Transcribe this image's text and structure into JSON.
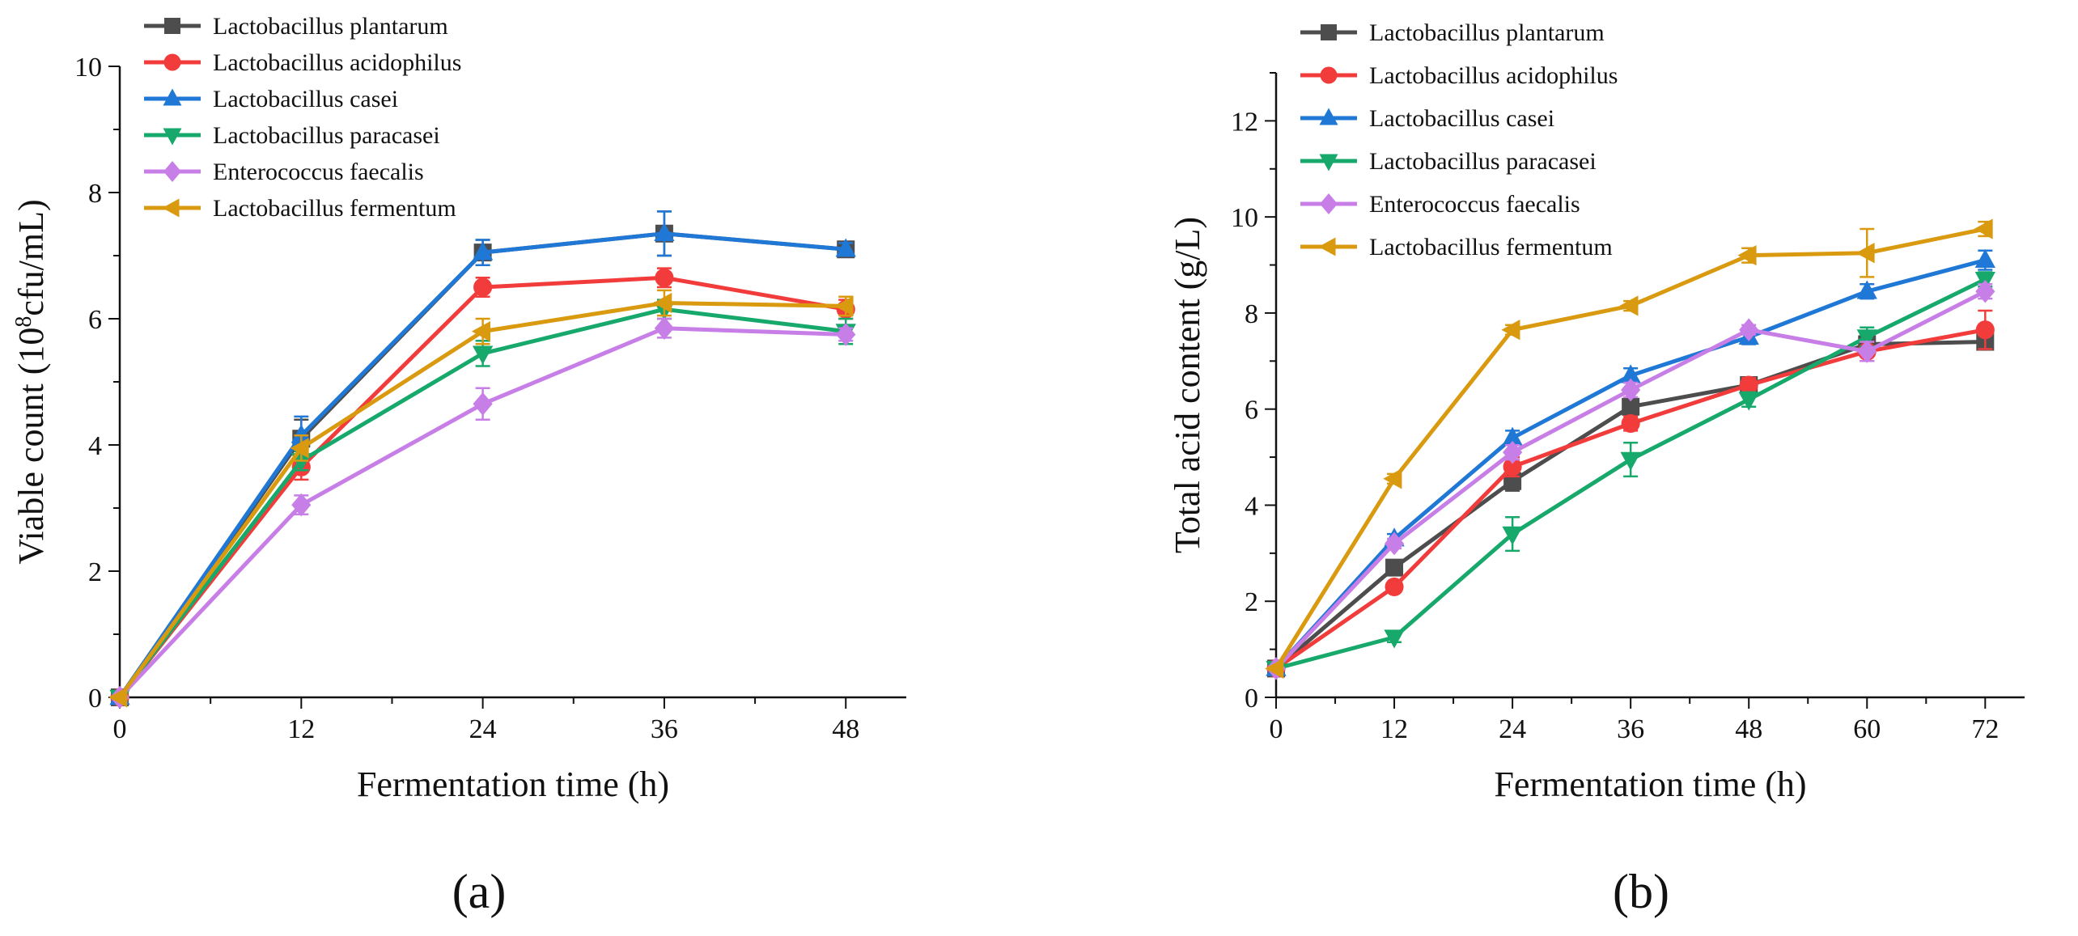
{
  "colors": {
    "plantarum": "#4d4d4d",
    "acidophilus": "#f23c3c",
    "casei": "#1f77d6",
    "paracasei": "#17a86b",
    "faecalis": "#c77ee6",
    "fermentum": "#d99a10",
    "axis": "#111111"
  },
  "chart_data": [
    {
      "type": "line",
      "panel_label": "(a)",
      "xlabel": "Fermentation time (h)",
      "ylabel_prefix": "Viable count (10",
      "ylabel_sup": "8",
      "ylabel_suffix": "cfu/mL)",
      "xlim": [
        0,
        52
      ],
      "ylim": [
        0,
        10
      ],
      "xticks": [
        0,
        12,
        24,
        36,
        48
      ],
      "yticks": [
        0,
        2,
        4,
        6,
        8,
        10
      ],
      "legend_position": "top-left",
      "x": [
        0,
        12,
        24,
        36,
        48
      ],
      "series": [
        {
          "key": "plantarum",
          "name": "Lactobacillus plantarum",
          "marker": "square",
          "color": "#4d4d4d",
          "values": [
            0,
            4.1,
            7.05,
            7.35,
            7.1
          ],
          "errors": [
            0,
            0.3,
            0.2,
            0.35,
            0.1
          ]
        },
        {
          "key": "acidophilus",
          "name": "Lactobacillus acidophilus",
          "marker": "circle",
          "color": "#f23c3c",
          "values": [
            0,
            3.65,
            6.5,
            6.65,
            6.15
          ],
          "errors": [
            0,
            0.2,
            0.15,
            0.15,
            0.15
          ]
        },
        {
          "key": "casei",
          "name": "Lactobacillus casei",
          "marker": "triangle-up",
          "color": "#1f77d6",
          "values": [
            0,
            4.15,
            7.05,
            7.35,
            7.1
          ],
          "errors": [
            0,
            0.3,
            0.2,
            0.35,
            0.1
          ]
        },
        {
          "key": "paracasei",
          "name": "Lactobacillus paracasei",
          "marker": "triangle-down",
          "color": "#17a86b",
          "values": [
            0,
            3.75,
            5.45,
            6.15,
            5.8
          ],
          "errors": [
            0,
            0.15,
            0.2,
            0.15,
            0.2
          ]
        },
        {
          "key": "faecalis",
          "name": "Enterococcus faecalis",
          "marker": "diamond",
          "color": "#c77ee6",
          "values": [
            0,
            3.05,
            4.65,
            5.85,
            5.75
          ],
          "errors": [
            0,
            0.15,
            0.25,
            0.15,
            0.1
          ]
        },
        {
          "key": "fermentum",
          "name": "Lactobacillus fermentum",
          "marker": "triangle-left",
          "color": "#d99a10",
          "values": [
            0,
            3.95,
            5.8,
            6.25,
            6.2
          ],
          "errors": [
            0,
            0.2,
            0.2,
            0.2,
            0.15
          ]
        }
      ]
    },
    {
      "type": "line",
      "panel_label": "(b)",
      "xlabel": "Fermentation time (h)",
      "ylabel": "Total acid content (g/L)",
      "xlim": [
        0,
        76
      ],
      "ylim": [
        0,
        13
      ],
      "xticks": [
        0,
        12,
        24,
        36,
        48,
        60,
        72
      ],
      "yticks": [
        0,
        2,
        4,
        6,
        8,
        10,
        12
      ],
      "legend_position": "top-left",
      "x": [
        0,
        12,
        24,
        36,
        48,
        60,
        72
      ],
      "series": [
        {
          "key": "plantarum",
          "name": "Lactobacillus plantarum",
          "marker": "square",
          "color": "#4d4d4d",
          "values": [
            0.6,
            2.7,
            4.5,
            6.05,
            6.5,
            7.35,
            7.4
          ],
          "errors": [
            0,
            0.15,
            0.2,
            0.15,
            0.15,
            0.2,
            0.15
          ]
        },
        {
          "key": "acidophilus",
          "name": "Lactobacillus acidophilus",
          "marker": "circle",
          "color": "#f23c3c",
          "values": [
            0.6,
            2.3,
            4.8,
            5.7,
            6.5,
            7.2,
            7.65
          ],
          "errors": [
            0,
            0.1,
            0.2,
            0.15,
            0.15,
            0.2,
            0.4
          ]
        },
        {
          "key": "casei",
          "name": "Lactobacillus casei",
          "marker": "triangle-up",
          "color": "#1f77d6",
          "values": [
            0.6,
            3.3,
            5.4,
            6.7,
            7.5,
            8.45,
            9.1
          ],
          "errors": [
            0,
            0.1,
            0.15,
            0.15,
            0.15,
            0.15,
            0.2
          ]
        },
        {
          "key": "paracasei",
          "name": "Lactobacillus paracasei",
          "marker": "triangle-down",
          "color": "#17a86b",
          "values": [
            0.6,
            1.25,
            3.4,
            4.95,
            6.2,
            7.5,
            8.7
          ],
          "errors": [
            0,
            0.1,
            0.35,
            0.35,
            0.15,
            0.2,
            0.15
          ]
        },
        {
          "key": "faecalis",
          "name": "Enterococcus faecalis",
          "marker": "diamond",
          "color": "#c77ee6",
          "values": [
            0.6,
            3.2,
            5.1,
            6.4,
            7.65,
            7.2,
            8.45
          ],
          "errors": [
            0,
            0.1,
            0.15,
            0.15,
            0.1,
            0.2,
            0.15
          ]
        },
        {
          "key": "fermentum",
          "name": "Lactobacillus fermentum",
          "marker": "triangle-left",
          "color": "#d99a10",
          "values": [
            0.6,
            4.55,
            7.65,
            8.15,
            9.2,
            9.25,
            9.75
          ],
          "errors": [
            0,
            0.1,
            0.1,
            0.1,
            0.15,
            0.5,
            0.15
          ]
        }
      ]
    }
  ]
}
